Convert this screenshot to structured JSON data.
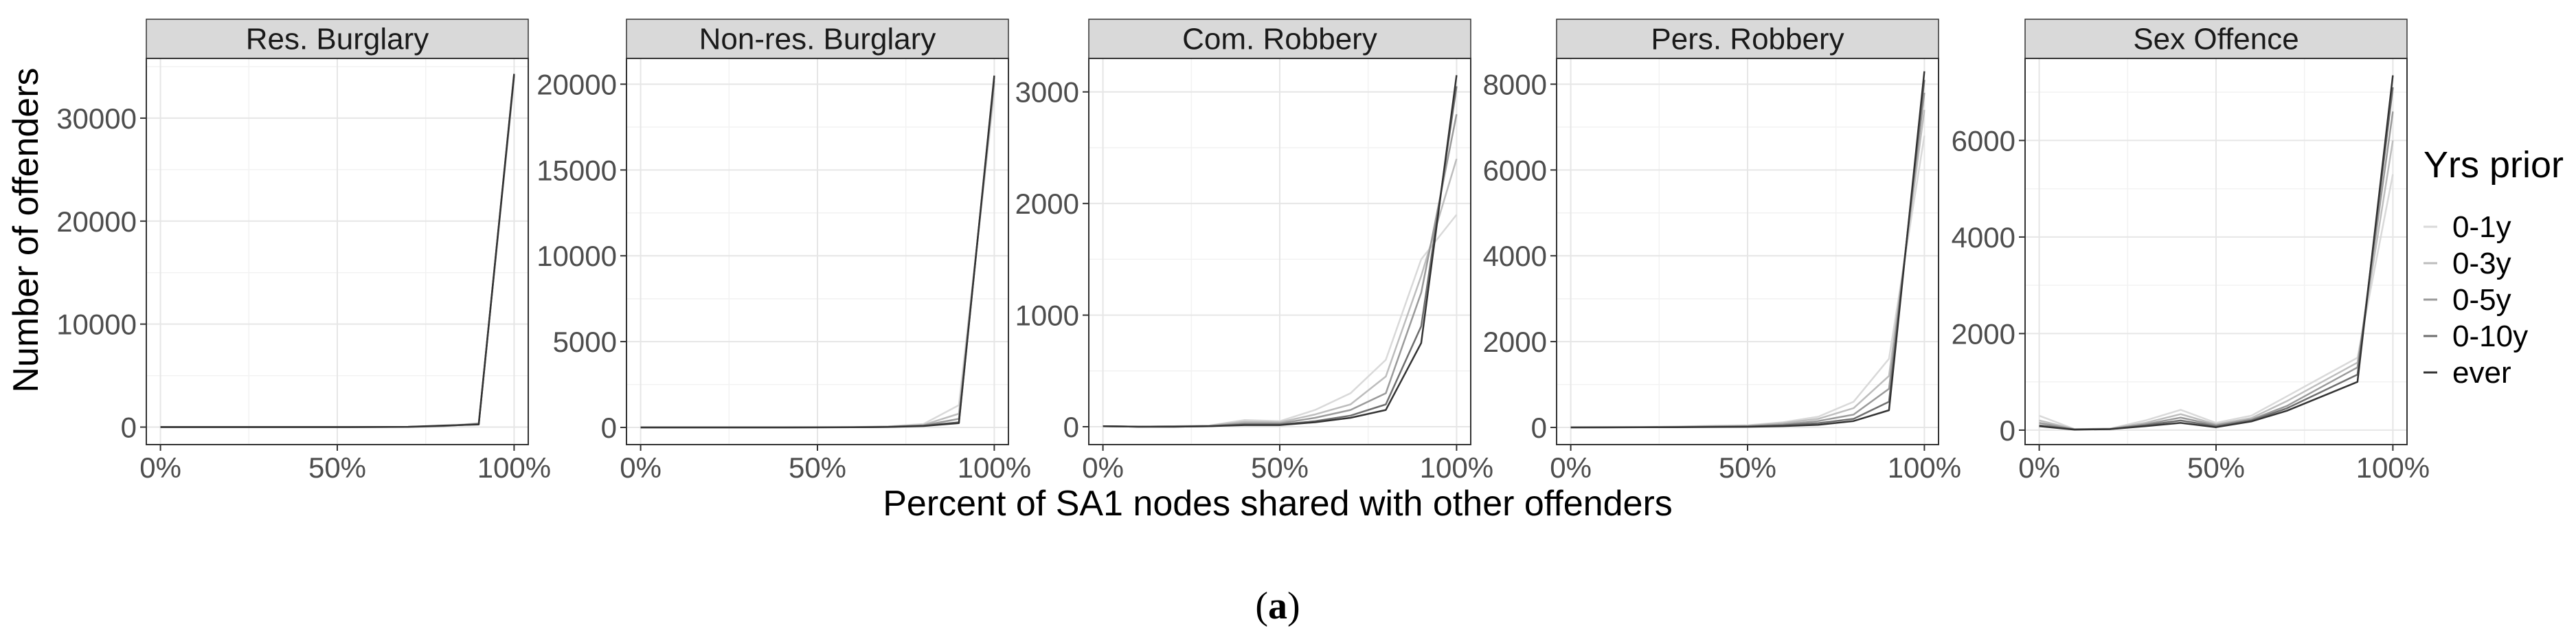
{
  "figure": {
    "caption_open": "(",
    "caption_letter": "a",
    "caption_close": ")"
  },
  "chart_data": {
    "type": "line",
    "xlabel": "Percent of SA1 nodes shared with other offenders",
    "ylabel": "Number of offenders",
    "x_tick_labels": [
      "0%",
      "50%",
      "100%"
    ],
    "x": [
      0,
      10,
      20,
      30,
      40,
      50,
      60,
      70,
      80,
      90,
      100
    ],
    "xlim": [
      -4,
      104
    ],
    "grid": true,
    "legend": {
      "title": "Yrs prior",
      "position": "right",
      "entries": [
        "0-1y",
        "0-3y",
        "0-5y",
        "0-10y",
        "ever"
      ],
      "colors": [
        "#d9d9d9",
        "#bdbdbd",
        "#9a9a9a",
        "#6e6e6e",
        "#333333"
      ]
    },
    "panels": [
      {
        "title": "Res. Burglary",
        "ylim": [
          -1700,
          35800
        ],
        "y_ticks": [
          0,
          10000,
          20000,
          30000
        ],
        "series": [
          {
            "name": "0-1y",
            "values": [
              0,
              0,
              0,
              0,
              0,
              0,
              0,
              5,
              50,
              400,
              33800
            ]
          },
          {
            "name": "0-3y",
            "values": [
              0,
              0,
              0,
              0,
              0,
              0,
              0,
              10,
              80,
              350,
              34000
            ]
          },
          {
            "name": "0-5y",
            "values": [
              0,
              0,
              0,
              0,
              0,
              0,
              5,
              15,
              100,
              300,
              34100
            ]
          },
          {
            "name": "0-10y",
            "values": [
              0,
              0,
              0,
              0,
              0,
              0,
              5,
              20,
              120,
              280,
              34200
            ]
          },
          {
            "name": "ever",
            "values": [
              0,
              0,
              0,
              0,
              0,
              0,
              5,
              25,
              150,
              250,
              34300
            ]
          }
        ]
      },
      {
        "title": "Non-res. Burglary",
        "ylim": [
          -1000,
          21500
        ],
        "y_ticks": [
          0,
          5000,
          10000,
          15000,
          20000
        ],
        "series": [
          {
            "name": "0-1y",
            "values": [
              0,
              0,
              0,
              0,
              5,
              10,
              20,
              60,
              200,
              1300,
              19500
            ]
          },
          {
            "name": "0-3y",
            "values": [
              0,
              0,
              0,
              0,
              5,
              10,
              20,
              50,
              150,
              800,
              20000
            ]
          },
          {
            "name": "0-5y",
            "values": [
              0,
              0,
              0,
              0,
              0,
              5,
              15,
              40,
              120,
              500,
              20200
            ]
          },
          {
            "name": "0-10y",
            "values": [
              0,
              0,
              0,
              0,
              0,
              5,
              10,
              30,
              100,
              300,
              20400
            ]
          },
          {
            "name": "ever",
            "values": [
              0,
              0,
              0,
              0,
              0,
              5,
              10,
              25,
              80,
              250,
              20500
            ]
          }
        ]
      },
      {
        "title": "Com. Robbery",
        "ylim": [
          -160,
          3300
        ],
        "y_ticks": [
          0,
          1000,
          2000,
          3000
        ],
        "series": [
          {
            "name": "0-1y",
            "values": [
              5,
              0,
              5,
              10,
              60,
              50,
              150,
              300,
              600,
              1500,
              1900
            ]
          },
          {
            "name": "0-3y",
            "values": [
              5,
              0,
              5,
              10,
              45,
              40,
              110,
              200,
              450,
              1350,
              2400
            ]
          },
          {
            "name": "0-5y",
            "values": [
              5,
              0,
              5,
              5,
              30,
              30,
              80,
              150,
              300,
              1200,
              2800
            ]
          },
          {
            "name": "0-10y",
            "values": [
              5,
              0,
              0,
              5,
              20,
              20,
              50,
              100,
              200,
              900,
              3050
            ]
          },
          {
            "name": "ever",
            "values": [
              5,
              0,
              0,
              5,
              15,
              15,
              40,
              80,
              150,
              750,
              3150
            ]
          }
        ]
      },
      {
        "title": "Pers. Robbery",
        "ylim": [
          -400,
          8600
        ],
        "y_ticks": [
          0,
          2000,
          4000,
          6000,
          8000
        ],
        "series": [
          {
            "name": "0-1y",
            "values": [
              5,
              10,
              10,
              20,
              40,
              50,
              120,
              250,
              600,
              1600,
              6800
            ]
          },
          {
            "name": "0-3y",
            "values": [
              5,
              5,
              10,
              15,
              30,
              40,
              100,
              200,
              450,
              1200,
              7400
            ]
          },
          {
            "name": "0-5y",
            "values": [
              5,
              5,
              5,
              10,
              20,
              30,
              70,
              150,
              300,
              900,
              7800
            ]
          },
          {
            "name": "0-10y",
            "values": [
              0,
              5,
              5,
              10,
              15,
              20,
              50,
              100,
              200,
              600,
              8100
            ]
          },
          {
            "name": "ever",
            "values": [
              0,
              0,
              5,
              5,
              10,
              15,
              30,
              60,
              150,
              400,
              8300
            ]
          }
        ]
      },
      {
        "title": "Sex Offence",
        "ylim": [
          -300,
          7700
        ],
        "y_ticks": [
          0,
          2000,
          4000,
          6000
        ],
        "series": [
          {
            "name": "0-1y",
            "values": [
              300,
              20,
              30,
              200,
              420,
              150,
              300,
              700,
              1100,
              1500,
              5300
            ]
          },
          {
            "name": "0-3y",
            "values": [
              200,
              20,
              30,
              150,
              330,
              120,
              250,
              600,
              1000,
              1400,
              6000
            ]
          },
          {
            "name": "0-5y",
            "values": [
              150,
              15,
              25,
              120,
              260,
              100,
              220,
              500,
              900,
              1300,
              6600
            ]
          },
          {
            "name": "0-10y",
            "values": [
              100,
              15,
              20,
              100,
              200,
              80,
              200,
              450,
              800,
              1150,
              7100
            ]
          },
          {
            "name": "ever",
            "values": [
              80,
              10,
              20,
              80,
              150,
              60,
              180,
              400,
              700,
              1000,
              7350
            ]
          }
        ]
      }
    ]
  }
}
